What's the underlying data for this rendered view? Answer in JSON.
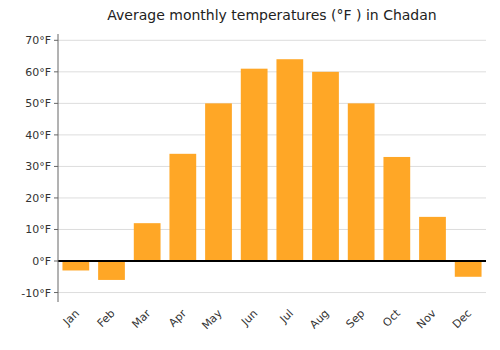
{
  "chart_data": {
    "type": "bar",
    "title": "Average monthly temperatures (°F ) in Chadan",
    "categories": [
      "Jan",
      "Feb",
      "Mar",
      "Apr",
      "May",
      "Jun",
      "Jul",
      "Aug",
      "Sep",
      "Oct",
      "Nov",
      "Dec"
    ],
    "values": [
      -3,
      -6,
      12,
      34,
      50,
      61,
      64,
      60,
      50,
      33,
      14,
      -5
    ],
    "color": "#FFA726",
    "ylim": [
      -13,
      72
    ],
    "yticks": [
      {
        "value": -10,
        "label": "-10°F"
      },
      {
        "value": 0,
        "label": "0°F"
      },
      {
        "value": 10,
        "label": "10°F"
      },
      {
        "value": 20,
        "label": "20°F"
      },
      {
        "value": 30,
        "label": "30°F"
      },
      {
        "value": 40,
        "label": "40°F"
      },
      {
        "value": 50,
        "label": "50°F"
      },
      {
        "value": 60,
        "label": "60°F"
      },
      {
        "value": 70,
        "label": "70°F"
      }
    ],
    "grid": true
  }
}
